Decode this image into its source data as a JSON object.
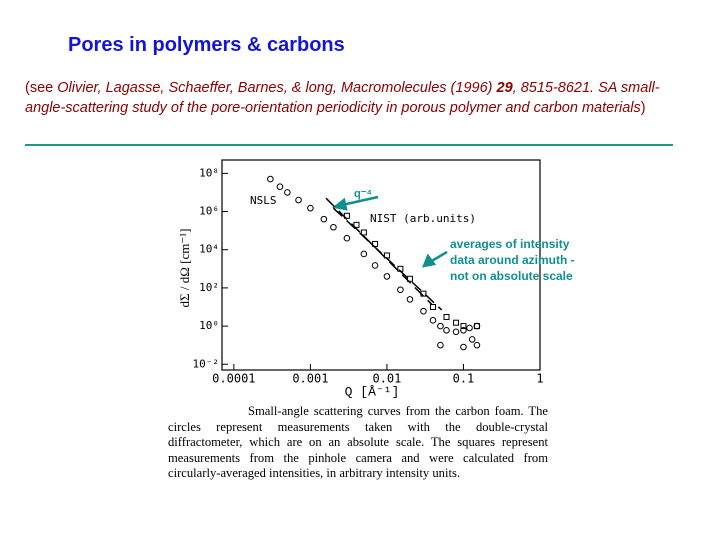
{
  "slide": {
    "title": "Pores in polymers & carbons",
    "citation": {
      "open": "(see ",
      "authors": "Olivier, Lagasse, Schaeffer, Barnes, & long, Macromolecules (1996) ",
      "volume": "29",
      "rest": ", 8515-8621. SA small-angle-scattering study of the pore-orientation periodicity in porous polymer and carbon materials",
      "close": ")"
    },
    "caption": "Small-angle scattering curves from the carbon foam. The circles represent measurements taken with the double-crystal diffractometer, which are on an absolute scale. The squares represent measurements from the pinhole camera and were calculated from circularly-averaged intensities, in arbitrary intensity units."
  },
  "chart_data": {
    "type": "scatter",
    "x_label": "Q  [Å⁻¹]",
    "y_label": "dΣ / dΩ [cm⁻¹]",
    "log_x": true,
    "log_y": true,
    "xlim": [
      7e-05,
      1
    ],
    "ylim": [
      0.005,
      500000000
    ],
    "xticks": [
      0.0001,
      0.001,
      0.01,
      0.1,
      1
    ],
    "yticks": [
      {
        "value": 0.01,
        "label": "10⁻²"
      },
      {
        "value": 1,
        "label": "10⁰"
      },
      {
        "value": 100,
        "label": "10²"
      },
      {
        "value": 10000,
        "label": "10⁴"
      },
      {
        "value": 1000000,
        "label": "10⁶"
      },
      {
        "value": 100000000,
        "label": "10⁸"
      }
    ],
    "series": [
      {
        "name": "NSLS",
        "marker": "circle",
        "color": "#000000",
        "x": [
          0.0003,
          0.0004,
          0.0005,
          0.0007,
          0.001,
          0.0015,
          0.002,
          0.003,
          0.005,
          0.007,
          0.01,
          0.015,
          0.02,
          0.03,
          0.04,
          0.05,
          0.06,
          0.08,
          0.1,
          0.12,
          0.15,
          0.05,
          0.1,
          0.15,
          0.13
        ],
        "values": [
          50000000,
          20000000,
          10000000,
          4000000,
          1500000,
          400000,
          150000,
          40000,
          6000,
          1500,
          400,
          80,
          25,
          6,
          2,
          1,
          0.6,
          0.5,
          0.6,
          0.8,
          1,
          0.1,
          0.08,
          0.1,
          0.2
        ]
      },
      {
        "name": "NIST  (arb.units)",
        "marker": "square",
        "color": "#000000",
        "x": [
          0.003,
          0.004,
          0.005,
          0.007,
          0.01,
          0.015,
          0.02,
          0.03,
          0.04,
          0.06,
          0.08,
          0.1,
          0.15
        ],
        "values": [
          600000,
          200000,
          80000,
          20000,
          5000,
          1000,
          300,
          50,
          10,
          3,
          1.5,
          1,
          1
        ]
      }
    ],
    "fit_lines": [
      {
        "x": [
          0.0016,
          0.039
        ],
        "values": [
          5000000,
          13
        ],
        "color": "#000000"
      },
      {
        "x": [
          0.002,
          0.052
        ],
        "values": [
          1500000,
          7
        ],
        "color": "#000000"
      }
    ],
    "annotations": {
      "slope": "q⁻⁴",
      "note": [
        "averages of intensity",
        "data around azimuth -",
        "not on absolute scale"
      ]
    }
  }
}
